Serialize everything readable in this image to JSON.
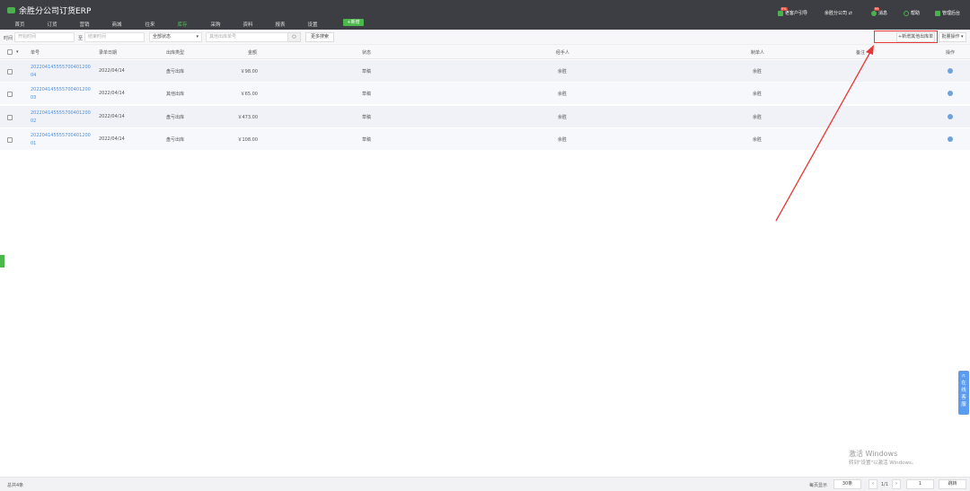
{
  "app": {
    "title": "余胜分公司订货ERP"
  },
  "nav": {
    "items": [
      "首页",
      "订货",
      "营销",
      "商城",
      "往来",
      "库存",
      "采购",
      "资料",
      "报表",
      "设置"
    ],
    "active": "库存",
    "new_button": "+新增"
  },
  "topright": {
    "customer": "老客户引导",
    "customer_badge": "0%",
    "company": "余胜分公司 ⇄",
    "messages": "消息",
    "messages_badge": "99",
    "help": "帮助",
    "admin": "管理后台"
  },
  "filters": {
    "time_label": "时间",
    "start_placeholder": "开始时间",
    "to_label": "至",
    "end_placeholder": "结束时间",
    "status_select": "全部状态",
    "search_placeholder": "其他出库单号",
    "more_search": "更多搜索",
    "new_other_outbound": "+新增其他出库单",
    "batch_ops": "批量操作 ▾"
  },
  "table": {
    "headers": [
      "单号",
      "录单日期",
      "出库类型",
      "金额",
      "状态",
      "经手人",
      "制单人",
      "备注",
      "操作"
    ],
    "rows": [
      {
        "id_line1": "202204145555700401200",
        "id_line2": "04",
        "date": "2022/04/14",
        "type": "盘亏出库",
        "amount": "￥98.00",
        "status": "草稿",
        "handler": "余胜",
        "creator": "余胜"
      },
      {
        "id_line1": "202204145555700401200",
        "id_line2": "03",
        "date": "2022/04/14",
        "type": "其他出库",
        "amount": "￥65.00",
        "status": "草稿",
        "handler": "余胜",
        "creator": "余胜"
      },
      {
        "id_line1": "202204145555700401200",
        "id_line2": "02",
        "date": "2022/04/14",
        "type": "盘亏出库",
        "amount": "￥473.00",
        "status": "草稿",
        "handler": "余胜",
        "creator": "余胜"
      },
      {
        "id_line1": "202204145555700401200",
        "id_line2": "01",
        "date": "2022/04/14",
        "type": "盘亏出库",
        "amount": "￥108.00",
        "status": "草稿",
        "handler": "余胜",
        "creator": "余胜"
      }
    ]
  },
  "footer": {
    "total": "总共4条",
    "per_page_label": "每页显示",
    "per_page": "30条",
    "page_info": "1/1",
    "page_input": "1",
    "jump": "跳转"
  },
  "service_tab": "在线客服",
  "watermark": {
    "line1": "激活 Windows",
    "line2": "转到\"设置\"以激活 Windows。"
  },
  "colors": {
    "accent": "#4cb84c",
    "link": "#4a8fe0",
    "topbar": "#3d3e43",
    "highlight": "#e53935"
  }
}
